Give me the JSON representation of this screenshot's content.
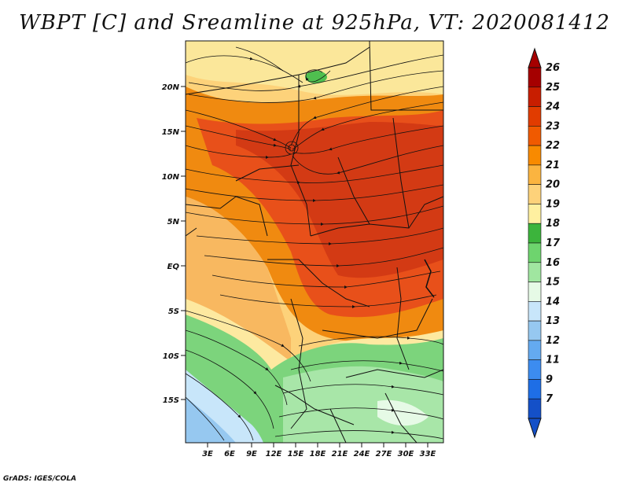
{
  "title": "WBPT [C] and Sreamline at 925hPa, VT: 2020081412",
  "credit": "GrADS: IGES/COLA",
  "lat_labels": [
    "20N",
    "15N",
    "10N",
    "5N",
    "EQ",
    "5S",
    "10S",
    "15S"
  ],
  "lon_labels": [
    "3E",
    "6E",
    "9E",
    "12E",
    "15E",
    "18E",
    "21E",
    "24E",
    "27E",
    "30E",
    "33E"
  ],
  "colorbar": {
    "labels": [
      "26",
      "25",
      "24",
      "23",
      "22",
      "21",
      "20",
      "19",
      "18",
      "17",
      "16",
      "15",
      "14",
      "13",
      "12",
      "11",
      "9",
      "7"
    ],
    "colors": [
      "#a50000",
      "#c81e00",
      "#e13c00",
      "#f05a00",
      "#f88a00",
      "#fbb440",
      "#fdd27a",
      "#fff0a0",
      "#3cb43c",
      "#6ed46e",
      "#a0e6a0",
      "#e6fae6",
      "#c8e6fa",
      "#96c8f0",
      "#64aaf0",
      "#3c8cf0",
      "#1e6ee6",
      "#1450c8"
    ]
  },
  "icons": {
    "up_arrow": "colorbar-max-arrow",
    "down_arrow": "colorbar-min-arrow"
  }
}
